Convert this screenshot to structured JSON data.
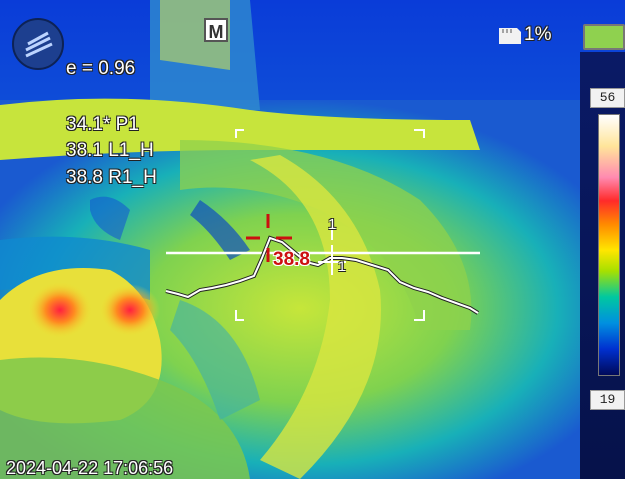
{
  "status": {
    "mode_icon": "M",
    "battery_percent": "1%",
    "emissivity": "e = 0.96"
  },
  "measurements": [
    {
      "label": "34.1* P1"
    },
    {
      "label": "38.1 L1_H"
    },
    {
      "label": "38.8 R1_H"
    }
  ],
  "overlay": {
    "hotspot_value": "38.8",
    "profile_marker": "1",
    "cross_marker": "1"
  },
  "scale": {
    "max": "56",
    "min": "19"
  },
  "timestamp": "2024-04-22 17:06:56",
  "colors": {
    "accent_red": "#cc1010",
    "battery_fill": "#8fd14f"
  },
  "icons": [
    "app-logo-icon",
    "manual-mode-icon",
    "sd-card-icon",
    "battery-icon",
    "crosshair-icon"
  ]
}
